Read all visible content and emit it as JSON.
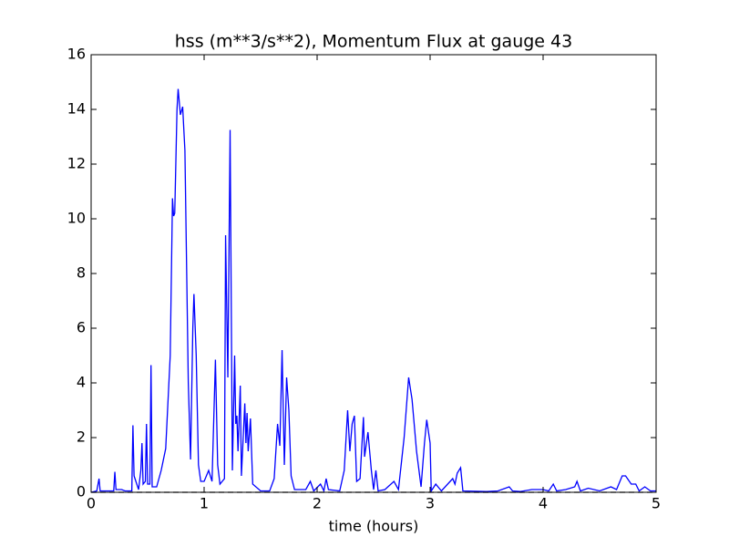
{
  "chart_data": {
    "type": "line",
    "title": "hss (m**3/s**2), Momentum Flux at gauge 43",
    "xlabel": "time (hours)",
    "xlim": [
      0,
      5
    ],
    "ylim": [
      0,
      16
    ],
    "xticks": [
      0,
      1,
      2,
      3,
      4,
      5
    ],
    "yticks": [
      0,
      2,
      4,
      6,
      8,
      10,
      12,
      14,
      16
    ],
    "series": [
      {
        "color": "#0000ff",
        "x": [
          0,
          0.05,
          0.07,
          0.08,
          0.2,
          0.21,
          0.22,
          0.27,
          0.3,
          0.36,
          0.37,
          0.38,
          0.42,
          0.44,
          0.45,
          0.46,
          0.48,
          0.49,
          0.5,
          0.52,
          0.53,
          0.54,
          0.58,
          0.62,
          0.66,
          0.7,
          0.72,
          0.73,
          0.74,
          0.76,
          0.77,
          0.79,
          0.81,
          0.83,
          0.86,
          0.88,
          0.9,
          0.91,
          0.93,
          0.95,
          0.97,
          1.0,
          1.04,
          1.07,
          1.1,
          1.12,
          1.14,
          1.18,
          1.19,
          1.21,
          1.23,
          1.25,
          1.27,
          1.28,
          1.29,
          1.3,
          1.32,
          1.33,
          1.36,
          1.37,
          1.38,
          1.39,
          1.41,
          1.43,
          1.5,
          1.58,
          1.62,
          1.65,
          1.67,
          1.69,
          1.71,
          1.73,
          1.75,
          1.77,
          1.8,
          1.9,
          1.94,
          1.97,
          2.03,
          2.06,
          2.08,
          2.1,
          2.2,
          2.24,
          2.27,
          2.29,
          2.31,
          2.33,
          2.35,
          2.38,
          2.41,
          2.42,
          2.45,
          2.48,
          2.5,
          2.52,
          2.54,
          2.6,
          2.68,
          2.72,
          2.77,
          2.81,
          2.84,
          2.88,
          2.92,
          2.95,
          2.97,
          3.0,
          3.01,
          3.05,
          3.1,
          3.2,
          3.22,
          3.24,
          3.27,
          3.29,
          3.5,
          3.6,
          3.7,
          3.73,
          3.8,
          3.9,
          4.0,
          4.05,
          4.09,
          4.12,
          4.2,
          4.28,
          4.3,
          4.33,
          4.4,
          4.5,
          4.6,
          4.65,
          4.7,
          4.73,
          4.78,
          4.82,
          4.85,
          4.9,
          4.95,
          5
        ],
        "values": [
          0,
          0.05,
          0.5,
          0.05,
          0.05,
          0.75,
          0.1,
          0.1,
          0.05,
          0.05,
          2.45,
          0.6,
          0.1,
          0.8,
          1.8,
          0.3,
          0.4,
          2.5,
          0.3,
          0.3,
          4.65,
          0.2,
          0.2,
          0.8,
          1.6,
          5,
          10.75,
          10.1,
          10.2,
          14,
          14.75,
          13.8,
          14.1,
          12.5,
          4,
          1.2,
          6,
          7.25,
          5,
          1,
          0.4,
          0.4,
          0.8,
          0.4,
          4.85,
          1,
          0.3,
          0.5,
          9.4,
          4.2,
          13.25,
          0.8,
          5,
          2.5,
          2.8,
          1.5,
          3.9,
          0.6,
          3.25,
          1.8,
          2.9,
          1.5,
          2.7,
          0.3,
          0.05,
          0.05,
          0.5,
          2.5,
          1.7,
          5.2,
          1,
          4.2,
          3,
          0.6,
          0.1,
          0.1,
          0.4,
          0.05,
          0.3,
          0.05,
          0.5,
          0.1,
          0.05,
          0.8,
          3,
          1.5,
          2.5,
          2.8,
          0.4,
          0.5,
          2.75,
          1.3,
          2.2,
          0.8,
          0.1,
          0.8,
          0.05,
          0.1,
          0.4,
          0.1,
          2,
          4.2,
          3.4,
          1.5,
          0.2,
          1.8,
          2.65,
          1.8,
          0.05,
          0.3,
          0.05,
          0.5,
          0.3,
          0.7,
          0.9,
          0.05,
          0.03,
          0.05,
          0.2,
          0.05,
          0.03,
          0.1,
          0.1,
          0.05,
          0.3,
          0.05,
          0.1,
          0.2,
          0.4,
          0.05,
          0.15,
          0.05,
          0.2,
          0.1,
          0.6,
          0.6,
          0.3,
          0.3,
          0.05,
          0.2,
          0.05,
          0.05
        ]
      },
      {
        "color": "#000000",
        "dashed": true,
        "x": [
          0,
          5
        ],
        "values": [
          0,
          0
        ]
      }
    ]
  }
}
